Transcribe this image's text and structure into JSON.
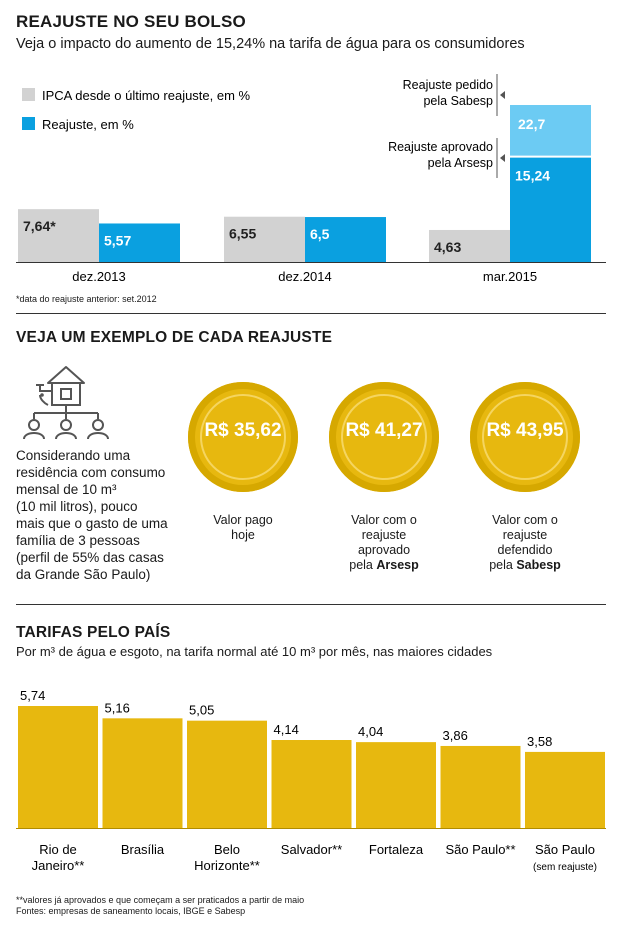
{
  "section1": {
    "title": "REAJUSTE NO SEU BOLSO",
    "subtitle": "Veja o impacto do aumento de 15,24% na tarifa de água para os consumidores",
    "footnote": "*data do reajuste anterior: set.2012"
  },
  "section2": {
    "title": "VEJA UM EXEMPLO DE CADA REAJUSTE",
    "description": [
      "Considerando uma",
      "residência com consumo",
      "mensal de 10 m³",
      "(10 mil litros), pouco",
      "mais que o gasto de uma",
      "família de 3 pessoas",
      "(perfil de 55% das casas",
      "da Grande São Paulo)"
    ],
    "coins": [
      {
        "value": "R$ 35,62",
        "caption": [
          "Valor pago",
          "hoje"
        ]
      },
      {
        "value": "R$ 41,27",
        "caption": [
          "Valor com o",
          "reajuste",
          "aprovado"
        ],
        "caption_prefix": "pela ",
        "caption_bold": "Arsesp"
      },
      {
        "value": "R$ 43,95",
        "caption": [
          "Valor com o",
          "reajuste",
          "defendido"
        ],
        "caption_prefix": "pela ",
        "caption_bold": "Sabesp"
      }
    ]
  },
  "section3": {
    "title": "TARIFAS PELO PAÍS",
    "subtitle": "Por m³ de água e esgoto, na tarifa normal até 10 m³ por mês, nas maiores cidades",
    "footnote1": "**valores já aprovados e que começam a ser praticados a partir de maio",
    "footnote2": "Fontes: empresas de saneamento locais, IBGE e Sabesp"
  },
  "colors": {
    "ipca": "#d2d2d2",
    "reajuste": "#0aa0e0",
    "pedido": "#6ccbf3",
    "gold": "#e7b80f"
  },
  "chart_data": [
    {
      "type": "bar",
      "categories": [
        "dez.2013",
        "dez.2014",
        "mar.2015"
      ],
      "series": [
        {
          "name": "IPCA desde o último reajuste, em %",
          "values": [
            7.64,
            6.55,
            4.63
          ],
          "labels": [
            "7,64*",
            "6,55",
            "4,63"
          ]
        },
        {
          "name": "Reajuste, em %",
          "values": [
            5.57,
            6.5,
            15.24
          ],
          "labels": [
            "5,57",
            "6,5",
            "15,24"
          ]
        }
      ],
      "stacked_extra": {
        "category": "mar.2015",
        "value": 22.7,
        "label": "22,7"
      },
      "annotations": [
        {
          "text": [
            "Reajuste pedido",
            "pela Sabesp"
          ]
        },
        {
          "text": [
            "Reajuste aprovado",
            "pela Arsesp"
          ]
        }
      ],
      "ylim": [
        0,
        23
      ]
    },
    {
      "type": "bar",
      "categories": [
        "Rio de Janeiro**",
        "Brasília",
        "Belo Horizonte**",
        "Salvador**",
        "Fortaleza",
        "São Paulo**",
        "São Paulo (sem reajuste)"
      ],
      "category_lines": [
        [
          "Rio de",
          "Janeiro**"
        ],
        [
          "Brasília"
        ],
        [
          "Belo",
          "Horizonte**"
        ],
        [
          "Salvador**"
        ],
        [
          "Fortaleza"
        ],
        [
          "São Paulo**"
        ],
        [
          "São Paulo",
          "(sem reajuste)"
        ]
      ],
      "values": [
        5.74,
        5.16,
        5.05,
        4.14,
        4.04,
        3.86,
        3.58
      ],
      "labels": [
        "5,74",
        "5,16",
        "5,05",
        "4,14",
        "4,04",
        "3,86",
        "3,58"
      ],
      "ylim": [
        0,
        5.74
      ]
    }
  ]
}
